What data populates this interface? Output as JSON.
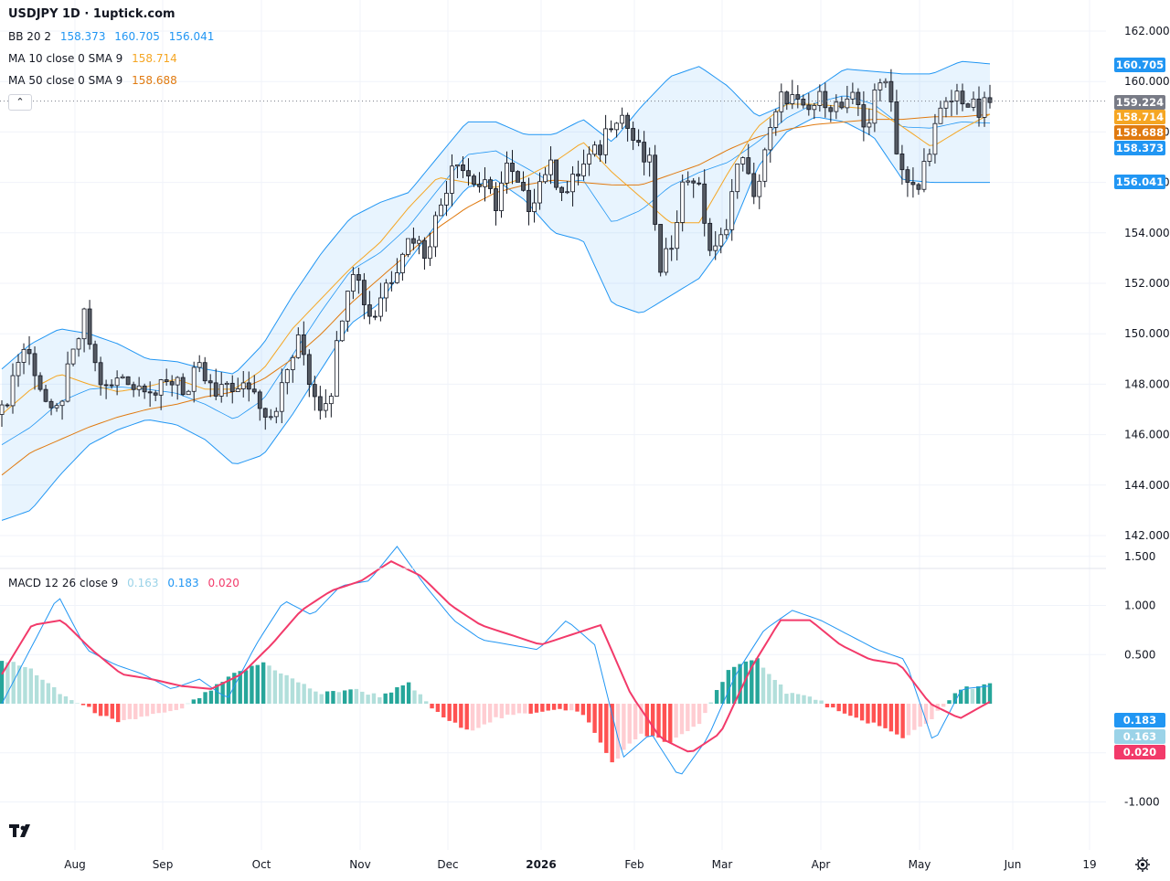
{
  "title": "USDJPY 1D · 1uptick.com",
  "legend": {
    "bb": {
      "name": "BB 20 2",
      "v1": "158.373",
      "v2": "160.705",
      "v3": "156.041",
      "color": "#2196f3"
    },
    "ma10": {
      "name": "MA 10 close 0 SMA 9",
      "value": "158.714",
      "color": "#f5a623"
    },
    "ma50": {
      "name": "MA 50 close 0 SMA 9",
      "value": "158.688",
      "color": "#e07a10"
    },
    "macd": {
      "name": "MACD 12 26 close 9",
      "v1": "0.163",
      "v2": "0.183",
      "v3": "0.020",
      "c1": "#9bd3e8",
      "c2": "#2196f3",
      "c3": "#f23a6a"
    }
  },
  "collapse_label": "⌃",
  "chart_data": [
    {
      "type": "candlestick",
      "symbol": "USDJPY",
      "interval": "1D",
      "y_ticks": [
        "162.000",
        "160.000",
        "158.000",
        "156.000",
        "154.000",
        "152.000",
        "150.000",
        "148.000",
        "146.000",
        "144.000",
        "142.000"
      ],
      "ylim": [
        141.2,
        162.4
      ],
      "x_ticks": [
        "Aug",
        "Sep",
        "Oct",
        "Nov",
        "Dec",
        "2026",
        "Feb",
        "Mar",
        "Apr",
        "May",
        "Jun",
        "19"
      ],
      "last_price": "159.224",
      "price_labels": [
        {
          "text": "160.705",
          "value": 160.705,
          "color": "#2196f3"
        },
        {
          "text": "159.224",
          "value": 159.224,
          "color": "#787b86"
        },
        {
          "text": "158.714",
          "value": 158.714,
          "color": "#f5a623"
        },
        {
          "text": "158.688",
          "value": 158.688,
          "color": "#e07a10"
        },
        {
          "text": "158.373",
          "value": 158.373,
          "color": "#2196f3"
        },
        {
          "text": "156.041",
          "value": 156.041,
          "color": "#2196f3"
        }
      ],
      "close_path": [
        146.8,
        148.2,
        149.5,
        148.9,
        147.6,
        146.4,
        147.8,
        149.2,
        150.6,
        148.8,
        147.7,
        148.0,
        148.5,
        147.8,
        148.2,
        147.6,
        147.9,
        148.4,
        147.5,
        148.6,
        148.0,
        147.3,
        148.2,
        147.6,
        148.0,
        147.4,
        146.8,
        147.5,
        148.9,
        149.8,
        148.0,
        147.2,
        147.9,
        150.8,
        152.9,
        151.6,
        150.5,
        151.8,
        152.4,
        153.5,
        153.9,
        153.2,
        154.3,
        155.6,
        157.3,
        156.4,
        156.0,
        155.7,
        155.2,
        156.6,
        155.9,
        155.0,
        155.8,
        156.7,
        156.1,
        155.6,
        156.4,
        156.9,
        157.2,
        158.4,
        158.9,
        158.0,
        157.1,
        156.6,
        152.2,
        153.6,
        155.7,
        156.5,
        155.2,
        152.9,
        153.8,
        155.7,
        157.3,
        155.0,
        157.2,
        158.3,
        159.6,
        159.2,
        158.6,
        159.1,
        159.4,
        159.0,
        158.9,
        159.3,
        158.1,
        159.6,
        160.5,
        157.2,
        155.8,
        155.6,
        157.4,
        158.5,
        159.1,
        159.6,
        159.0,
        158.7,
        159.2
      ],
      "bb_upper_path": [
        148.6,
        149.6,
        150.2,
        150.0,
        149.6,
        149.0,
        148.9,
        148.6,
        148.4,
        149.6,
        151.5,
        153.2,
        154.6,
        155.2,
        155.6,
        157.0,
        158.4,
        158.4,
        157.9,
        157.9,
        158.5,
        157.6,
        159.0,
        160.2,
        160.6,
        159.8,
        158.6,
        159.1,
        159.7,
        160.5,
        160.4,
        160.3,
        160.3,
        160.8,
        160.7
      ],
      "bb_lower_path": [
        142.6,
        143.0,
        144.4,
        145.6,
        146.2,
        146.6,
        146.4,
        145.8,
        144.8,
        145.2,
        146.8,
        148.6,
        150.4,
        151.2,
        152.9,
        154.4,
        155.8,
        156.1,
        155.3,
        154.0,
        153.7,
        151.2,
        150.8,
        151.5,
        152.2,
        153.8,
        156.6,
        158.0,
        158.6,
        158.4,
        157.8,
        156.1,
        156.0,
        156.0,
        156.0
      ],
      "ma10_path": [
        146.8,
        147.8,
        148.4,
        148.0,
        147.7,
        147.9,
        148.2,
        147.8,
        147.8,
        148.6,
        150.2,
        151.4,
        152.6,
        153.6,
        155.0,
        156.2,
        156.0,
        155.8,
        156.2,
        156.8,
        157.6,
        156.4,
        155.4,
        154.4,
        154.4,
        156.4,
        158.2,
        159.1,
        159.1,
        159.0,
        158.9,
        158.2,
        157.4,
        158.1,
        158.7
      ],
      "ma50_path": [
        144.4,
        145.3,
        145.8,
        146.3,
        146.7,
        147.0,
        147.2,
        147.5,
        147.7,
        148.2,
        149.0,
        150.0,
        151.2,
        152.2,
        153.2,
        154.2,
        155.0,
        155.6,
        155.9,
        156.1,
        156.0,
        155.9,
        155.9,
        156.3,
        156.7,
        157.3,
        157.8,
        158.1,
        158.3,
        158.4,
        158.5,
        158.5,
        158.6,
        158.6,
        158.7
      ]
    },
    {
      "type": "macd",
      "y_ticks": [
        "1.500",
        "1.000",
        "0.500",
        "-0.500",
        "-1.000"
      ],
      "ylim": [
        -1.1,
        1.75
      ],
      "zero_level": 0,
      "price_labels": [
        {
          "text": "0.183",
          "value": 0.183,
          "color": "#2196f3"
        },
        {
          "text": "0.163",
          "value": 0.163,
          "color": "#9bd3e8"
        },
        {
          "text": "0.020",
          "value": 0.02,
          "color": "#f23a6a"
        }
      ],
      "macd_path": [
        0.0,
        0.55,
        1.1,
        0.55,
        0.4,
        0.3,
        0.15,
        0.25,
        0.05,
        0.6,
        1.05,
        0.9,
        1.2,
        1.25,
        1.6,
        1.2,
        0.85,
        0.65,
        0.6,
        0.55,
        0.85,
        0.6,
        -0.55,
        -0.3,
        -0.75,
        -0.35,
        0.3,
        0.75,
        0.95,
        0.85,
        0.7,
        0.55,
        0.45,
        -0.4,
        0.15,
        0.18
      ],
      "signal_path": [
        0.3,
        0.8,
        0.85,
        0.55,
        0.3,
        0.25,
        0.18,
        0.15,
        0.3,
        0.6,
        0.95,
        1.15,
        1.25,
        1.45,
        1.3,
        1.0,
        0.8,
        0.7,
        0.6,
        0.7,
        0.8,
        0.1,
        -0.35,
        -0.5,
        -0.3,
        0.35,
        0.85,
        0.85,
        0.6,
        0.45,
        0.4,
        0.0,
        -0.15,
        0.02
      ],
      "histogram_path": [
        0.45,
        0.35,
        0.1,
        -0.05,
        -0.2,
        -0.12,
        -0.08,
        0.1,
        0.3,
        0.42,
        0.25,
        0.1,
        0.15,
        0.08,
        0.2,
        -0.1,
        -0.28,
        -0.15,
        -0.1,
        -0.05,
        -0.1,
        -0.6,
        -0.3,
        -0.4,
        -0.2,
        0.35,
        0.45,
        0.12,
        0.05,
        -0.12,
        -0.2,
        -0.35,
        -0.15,
        0.15,
        0.2
      ]
    }
  ]
}
